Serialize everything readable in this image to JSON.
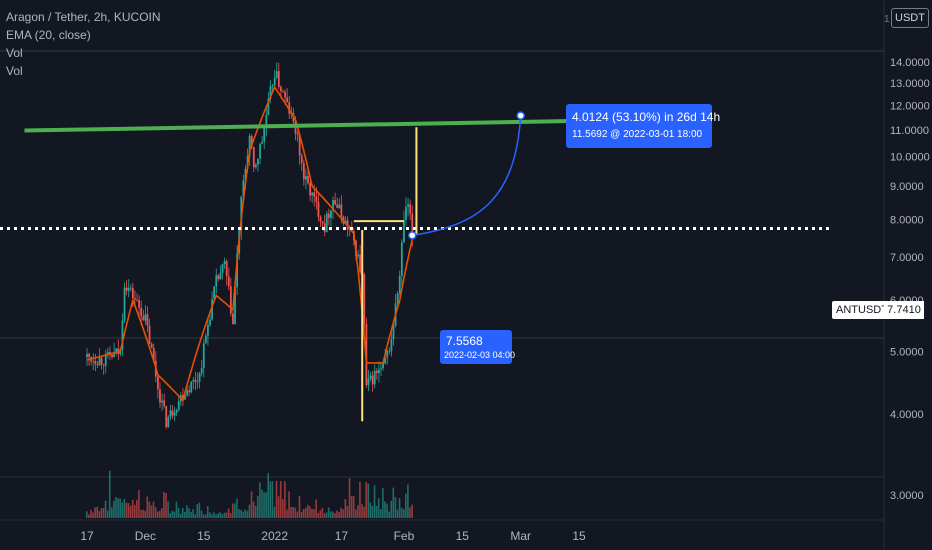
{
  "legend": {
    "title": "Aragon / Tether, 2h, KUCOIN",
    "indicator": "EMA (20, close)",
    "vol1": "Vol",
    "vol2": "Vol"
  },
  "axis": {
    "unit": "USDT"
  },
  "symbol_tag": {
    "symbol": "ANTUSDT",
    "price": "7.7410"
  },
  "projection": {
    "summary": "4.0124 (53.10%) in 26d 14h",
    "target": "11.5692 @ 2022-03-01  18:00",
    "entry_value": "7.5568",
    "entry_time": "2022-02-03 04:00"
  },
  "colors": {
    "background": "#131722",
    "candle_up": "#26a69a",
    "candle_down": "#ef5350",
    "ema": "#e65100",
    "trendline": "#4caf50",
    "measure": "#ffe082",
    "projection": "#2962ff"
  },
  "chart_data": {
    "type": "line",
    "title": "Aragon / Tether, 2h, KUCOIN",
    "xlabel": "",
    "ylabel": "USDT",
    "x_tick_labels": [
      "17",
      "Dec",
      "15",
      "2022",
      "17",
      "Feb",
      "15",
      "Mar",
      "15"
    ],
    "y_tick_labels": [
      "3.0000",
      "4.0000",
      "5.0000",
      "6.0000",
      "7.0000",
      "8.0000",
      "9.0000",
      "10.0000",
      "11.0000",
      "12.0000",
      "13.0000",
      "14.0000"
    ],
    "ylim": [
      2.4,
      15.0
    ],
    "y_scale": "log",
    "grid": false,
    "series": [
      {
        "name": "ANTUSDT",
        "x": [
          "2021-11-17",
          "2021-11-21",
          "2021-11-25",
          "2021-11-26",
          "2021-11-28",
          "2021-12-01",
          "2021-12-04",
          "2021-12-06",
          "2021-12-10",
          "2021-12-14",
          "2021-12-18",
          "2021-12-20",
          "2021-12-22",
          "2021-12-24",
          "2021-12-26",
          "2021-12-27",
          "2021-12-29",
          "2022-01-01",
          "2022-01-04",
          "2022-01-06",
          "2022-01-08",
          "2022-01-10",
          "2022-01-13",
          "2022-01-15",
          "2022-01-18",
          "2022-01-20",
          "2022-01-22",
          "2022-01-23",
          "2022-01-25",
          "2022-01-27",
          "2022-01-29",
          "2022-01-31",
          "2022-02-01",
          "2022-02-02",
          "2022-02-03"
        ],
        "values": [
          4.9,
          4.85,
          5.0,
          6.4,
          6.1,
          5.6,
          4.4,
          3.9,
          4.3,
          4.6,
          6.4,
          6.8,
          5.5,
          8.5,
          10.7,
          9.5,
          10.6,
          13.5,
          12.0,
          11.0,
          9.3,
          8.7,
          7.8,
          8.6,
          7.9,
          7.4,
          6.5,
          4.4,
          4.6,
          4.7,
          5.2,
          6.5,
          8.0,
          8.4,
          7.55
        ]
      },
      {
        "name": "EMA (20, close)",
        "x": [
          "2021-11-17",
          "2021-11-25",
          "2021-11-28",
          "2021-12-04",
          "2021-12-10",
          "2021-12-18",
          "2021-12-22",
          "2021-12-26",
          "2022-01-01",
          "2022-01-06",
          "2022-01-10",
          "2022-01-15",
          "2022-01-20",
          "2022-01-23",
          "2022-01-27",
          "2022-01-31",
          "2022-02-03"
        ],
        "values": [
          4.85,
          5.0,
          6.0,
          4.6,
          4.2,
          6.1,
          5.8,
          10.2,
          12.8,
          11.4,
          9.0,
          8.3,
          7.6,
          4.8,
          4.8,
          6.0,
          7.45
        ]
      },
      {
        "name": "Volume",
        "x": [
          "2021-11-17",
          "2021-11-25",
          "2021-12-04",
          "2021-12-18",
          "2021-12-26",
          "2022-01-01",
          "2022-01-08",
          "2022-01-15",
          "2022-01-22",
          "2022-01-29",
          "2022-02-03"
        ],
        "values": [
          0.25,
          0.95,
          0.45,
          0.3,
          0.65,
          0.9,
          0.5,
          0.4,
          0.85,
          0.55,
          0.9
        ]
      }
    ],
    "trendline": {
      "from": [
        "2021-11-02",
        10.97
      ],
      "to": [
        "2022-04-06",
        11.42
      ]
    },
    "current_price": 7.741,
    "measure": {
      "horizontal": {
        "from": "2022-01-20",
        "to": "2022-02-01",
        "value": 7.95
      },
      "vertical_1": {
        "x": "2022-01-22",
        "from": 7.7,
        "to": 3.9
      },
      "vertical_2": {
        "x": "2022-02-04",
        "from": 7.6,
        "to": 11.1
      }
    },
    "projection": {
      "from": [
        "2022-02-03",
        7.5568
      ],
      "to": [
        "2022-03-01",
        11.5692
      ],
      "change": 4.0124,
      "change_pct": 53.1
    },
    "annotations": [
      "4.0124 (53.10%) in 26d 14h",
      "11.5692 @ 2022-03-01  18:00",
      "7.5568",
      "2022-02-03 04:00"
    ]
  }
}
